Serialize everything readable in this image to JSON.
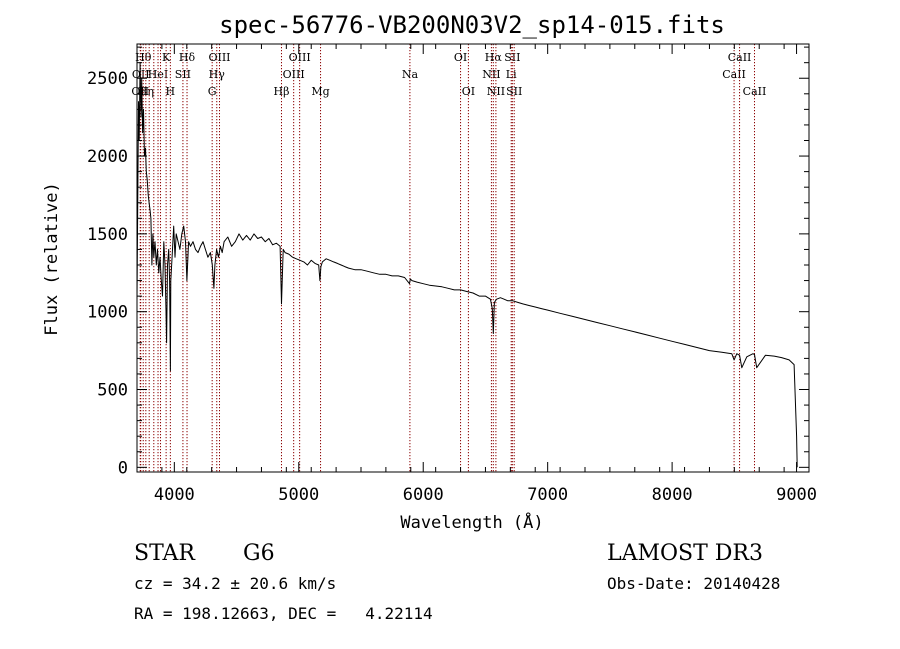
{
  "chart_data": {
    "type": "line",
    "title": "spec-56776-VB200N03V2_sp14-015.fits",
    "xlabel": "Wavelength (Å)",
    "ylabel": "Flux (relative)",
    "xlim": [
      3700,
      9100
    ],
    "ylim": [
      -30,
      2720
    ],
    "x_ticks": [
      4000,
      5000,
      6000,
      7000,
      8000,
      9000
    ],
    "y_ticks": [
      0,
      500,
      1000,
      1500,
      2000,
      2500
    ],
    "grid": false,
    "line_color": "#000000",
    "marker_color": "#8b0000",
    "series": [
      {
        "x": [
          3700,
          3712,
          3718,
          3725,
          3732,
          3738,
          3745,
          3752,
          3760,
          3768,
          3775,
          3782,
          3790,
          3797,
          3805,
          3812,
          3820,
          3828,
          3835,
          3845,
          3855,
          3865,
          3875,
          3885,
          3895,
          3905,
          3915,
          3925,
          3933,
          3938,
          3945,
          3955,
          3962,
          3968,
          3972,
          3985,
          3995,
          4005,
          4015,
          4030,
          4045,
          4060,
          4075,
          4090,
          4101,
          4115,
          4130,
          4150,
          4170,
          4190,
          4210,
          4230,
          4250,
          4270,
          4290,
          4305,
          4318,
          4326,
          4340,
          4355,
          4370,
          4385,
          4400,
          4430,
          4460,
          4490,
          4520,
          4550,
          4580,
          4610,
          4640,
          4670,
          4700,
          4730,
          4760,
          4790,
          4820,
          4850,
          4861,
          4875,
          4890,
          4920,
          4950,
          4980,
          5010,
          5040,
          5070,
          5100,
          5130,
          5160,
          5170,
          5178,
          5190,
          5220,
          5250,
          5280,
          5310,
          5340,
          5370,
          5400,
          5450,
          5500,
          5550,
          5600,
          5650,
          5700,
          5750,
          5800,
          5850,
          5890,
          5896,
          5910,
          5950,
          6000,
          6050,
          6100,
          6150,
          6200,
          6250,
          6300,
          6350,
          6400,
          6450,
          6500,
          6540,
          6555,
          6563,
          6572,
          6590,
          6620,
          6650,
          6680,
          6720,
          6760,
          6800,
          6850,
          6900,
          6950,
          7000,
          7100,
          7200,
          7300,
          7400,
          7500,
          7600,
          7700,
          7800,
          7900,
          8000,
          8100,
          8200,
          8300,
          8400,
          8480,
          8498,
          8520,
          8542,
          8560,
          8600,
          8650,
          8662,
          8680,
          8750,
          8820,
          8880,
          8940,
          8980,
          9000,
          9005
        ],
        "y": [
          1080,
          2350,
          2100,
          2600,
          2250,
          2500,
          2150,
          2300,
          2000,
          2050,
          1900,
          1850,
          1750,
          1700,
          1650,
          1600,
          1300,
          1500,
          1350,
          1450,
          1300,
          1400,
          1250,
          1350,
          1200,
          1100,
          1450,
          1300,
          1000,
          800,
          1300,
          1400,
          1200,
          620,
          1200,
          1400,
          1550,
          1350,
          1500,
          1450,
          1400,
          1500,
          1550,
          1450,
          1200,
          1450,
          1420,
          1450,
          1400,
          1380,
          1420,
          1450,
          1400,
          1350,
          1380,
          1300,
          1150,
          1300,
          1400,
          1350,
          1420,
          1380,
          1450,
          1480,
          1420,
          1450,
          1500,
          1460,
          1490,
          1460,
          1500,
          1470,
          1480,
          1450,
          1470,
          1430,
          1440,
          1420,
          1050,
          1400,
          1380,
          1370,
          1350,
          1340,
          1330,
          1320,
          1300,
          1330,
          1310,
          1300,
          1200,
          1290,
          1320,
          1340,
          1330,
          1320,
          1310,
          1300,
          1290,
          1280,
          1270,
          1270,
          1260,
          1250,
          1240,
          1240,
          1230,
          1230,
          1220,
          1180,
          1210,
          1200,
          1190,
          1180,
          1170,
          1165,
          1160,
          1150,
          1140,
          1140,
          1130,
          1120,
          1100,
          1100,
          1080,
          1020,
          860,
          1060,
          1080,
          1090,
          1080,
          1070,
          1070,
          1060,
          1050,
          1040,
          1030,
          1020,
          1010,
          990,
          970,
          950,
          930,
          910,
          890,
          870,
          850,
          830,
          810,
          790,
          770,
          750,
          740,
          730,
          690,
          730,
          720,
          640,
          710,
          730,
          725,
          640,
          720,
          715,
          705,
          690,
          660,
          200,
          0
        ]
      }
    ],
    "line_markers": [
      {
        "wl": 3726,
        "top": "",
        "mid": "",
        "bot": "OII"
      },
      {
        "wl": 3730,
        "top": "",
        "mid": "OII",
        "bot": ""
      },
      {
        "wl": 3750,
        "top": "Hθ",
        "mid": "",
        "bot": ""
      },
      {
        "wl": 3771,
        "top": "",
        "mid": "",
        "bot": "Hη"
      },
      {
        "wl": 3798,
        "top": "",
        "mid": "",
        "bot": ""
      },
      {
        "wl": 3835,
        "top": "",
        "mid": "",
        "bot": ""
      },
      {
        "wl": 3869,
        "top": "",
        "mid": "HeI",
        "bot": ""
      },
      {
        "wl": 3889,
        "top": "",
        "mid": "",
        "bot": ""
      },
      {
        "wl": 3934,
        "top": "K",
        "mid": "",
        "bot": ""
      },
      {
        "wl": 3968,
        "top": "",
        "mid": "",
        "bot": "H"
      },
      {
        "wl": 4069,
        "top": "",
        "mid": "SII",
        "bot": ""
      },
      {
        "wl": 4102,
        "top": "Hδ",
        "mid": "",
        "bot": ""
      },
      {
        "wl": 4304,
        "top": "",
        "mid": "",
        "bot": "G"
      },
      {
        "wl": 4341,
        "top": "",
        "mid": "Hγ",
        "bot": ""
      },
      {
        "wl": 4363,
        "top": "OIII",
        "mid": "",
        "bot": ""
      },
      {
        "wl": 4861,
        "top": "",
        "mid": "",
        "bot": "Hβ"
      },
      {
        "wl": 4959,
        "top": "",
        "mid": "OIII",
        "bot": ""
      },
      {
        "wl": 5007,
        "top": "OIII",
        "mid": "",
        "bot": ""
      },
      {
        "wl": 5175,
        "top": "",
        "mid": "",
        "bot": "Mg"
      },
      {
        "wl": 5893,
        "top": "",
        "mid": "Na",
        "bot": ""
      },
      {
        "wl": 6300,
        "top": "OI",
        "mid": "",
        "bot": ""
      },
      {
        "wl": 6363,
        "top": "",
        "mid": "",
        "bot": "OI"
      },
      {
        "wl": 6548,
        "top": "",
        "mid": "NII",
        "bot": ""
      },
      {
        "wl": 6563,
        "top": "Hα",
        "mid": "",
        "bot": ""
      },
      {
        "wl": 6584,
        "top": "",
        "mid": "",
        "bot": "NII"
      },
      {
        "wl": 6707,
        "top": "",
        "mid": "Li",
        "bot": ""
      },
      {
        "wl": 6716,
        "top": "SII",
        "mid": "",
        "bot": ""
      },
      {
        "wl": 6731,
        "top": "",
        "mid": "",
        "bot": "SII"
      },
      {
        "wl": 8498,
        "top": "",
        "mid": "CaII",
        "bot": ""
      },
      {
        "wl": 8542,
        "top": "CaII",
        "mid": "",
        "bot": ""
      },
      {
        "wl": 8662,
        "top": "",
        "mid": "",
        "bot": "CaII"
      }
    ]
  },
  "info": {
    "object_class": "STAR",
    "subclass": "G6",
    "survey": "LAMOST DR3",
    "redshift": "cz = 34.2 ± 20.6 km/s",
    "obs_date": "Obs-Date: 20140428",
    "coords": "RA = 198.12663, DEC =   4.22114"
  }
}
